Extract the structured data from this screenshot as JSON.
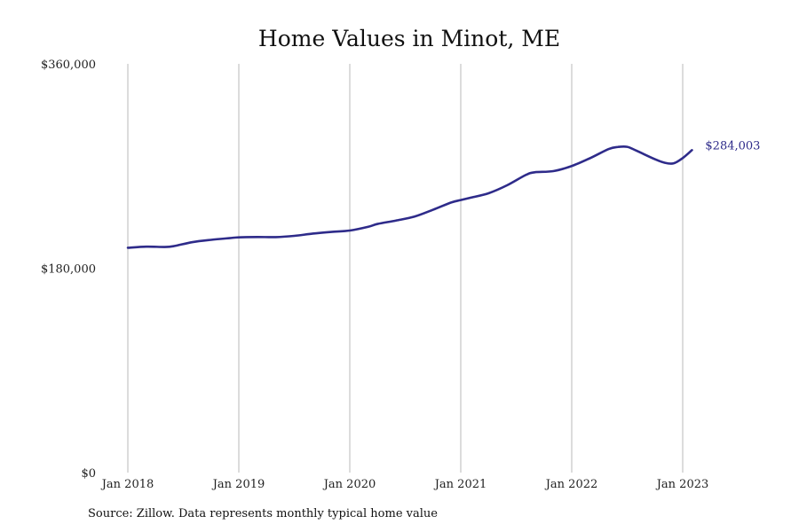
{
  "chart_data": {
    "type": "line",
    "title": "Home Values in Minot, ME",
    "xlabel": "",
    "ylabel": "",
    "ylim": [
      0,
      360000
    ],
    "y_ticks": [
      {
        "value": 0,
        "label": "$0"
      },
      {
        "value": 180000,
        "label": "$180,000"
      },
      {
        "value": 360000,
        "label": "$360,000"
      }
    ],
    "x_ticks": [
      {
        "value": "2018-01",
        "label": "Jan 2018"
      },
      {
        "value": "2019-01",
        "label": "Jan 2019"
      },
      {
        "value": "2020-01",
        "label": "Jan 2020"
      },
      {
        "value": "2021-01",
        "label": "Jan 2021"
      },
      {
        "value": "2022-01",
        "label": "Jan 2022"
      },
      {
        "value": "2023-01",
        "label": "Jan 2023"
      }
    ],
    "grid": "vertical",
    "series": [
      {
        "color": "#2e2b8a",
        "end_label": "$284,003",
        "points": [
          [
            "2018-01",
            198000
          ],
          [
            "2018-03",
            199000
          ],
          [
            "2018-05",
            198700
          ],
          [
            "2018-06",
            199500
          ],
          [
            "2018-08",
            203000
          ],
          [
            "2018-10",
            205000
          ],
          [
            "2018-12",
            206500
          ],
          [
            "2019-01",
            207200
          ],
          [
            "2019-03",
            207500
          ],
          [
            "2019-05",
            207400
          ],
          [
            "2019-07",
            208500
          ],
          [
            "2019-09",
            210500
          ],
          [
            "2019-11",
            212000
          ],
          [
            "2020-01",
            213200
          ],
          [
            "2020-03",
            216500
          ],
          [
            "2020-04",
            219000
          ],
          [
            "2020-06",
            222000
          ],
          [
            "2020-08",
            225500
          ],
          [
            "2020-10",
            231500
          ],
          [
            "2020-12",
            238000
          ],
          [
            "2021-01",
            240000
          ],
          [
            "2021-02",
            242000
          ],
          [
            "2021-04",
            246000
          ],
          [
            "2021-06",
            253000
          ],
          [
            "2021-08",
            262000
          ],
          [
            "2021-09",
            264500
          ],
          [
            "2021-11",
            265500
          ],
          [
            "2022-01",
            270000
          ],
          [
            "2022-03",
            277000
          ],
          [
            "2022-05",
            285000
          ],
          [
            "2022-06",
            286800
          ],
          [
            "2022-07",
            286900
          ],
          [
            "2022-08",
            283500
          ],
          [
            "2022-10",
            276000
          ],
          [
            "2022-11",
            273000
          ],
          [
            "2022-12",
            272300
          ],
          [
            "2023-01",
            277000
          ],
          [
            "2023-02",
            284003
          ]
        ]
      }
    ]
  },
  "source_note": "Source: Zillow. Data represents monthly typical home value"
}
